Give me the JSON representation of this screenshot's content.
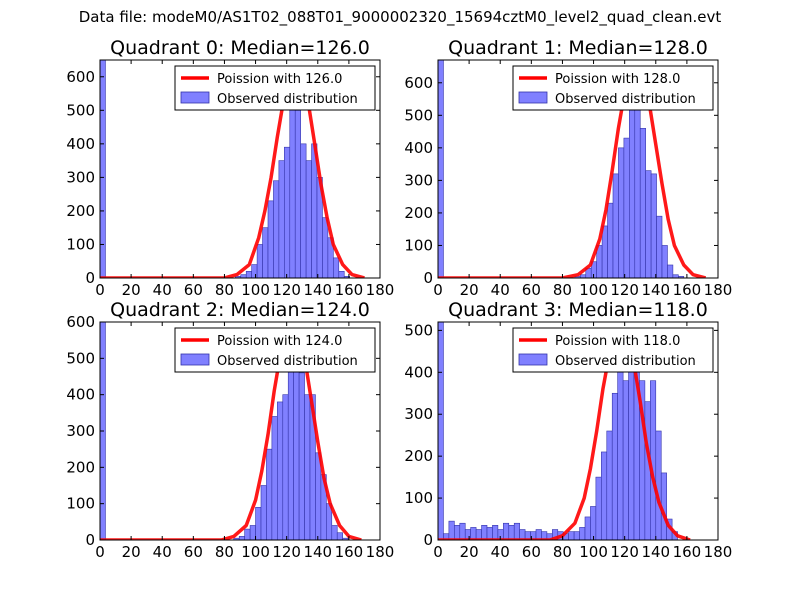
{
  "suptitle": "Data file: modeM0/AS1T02_088T01_9000002320_15694cztM0_level2_quad_clean.evt",
  "colors": {
    "hist_fill": "#8080ff",
    "hist_edge": "#3333aa",
    "poisson": "#ff0000"
  },
  "chart_data": [
    {
      "type": "bar",
      "title": "Quadrant 0: Median=126.0",
      "legend": [
        "Poission with 126.0",
        "Observed distribution"
      ],
      "legend_position": "top-right",
      "xlim": [
        0,
        180
      ],
      "ylim": [
        0,
        650
      ],
      "xticks": [
        0,
        20,
        40,
        60,
        80,
        100,
        120,
        140,
        160,
        180
      ],
      "yticks": [
        0,
        100,
        200,
        300,
        400,
        500,
        600
      ],
      "bin_width": 3.5,
      "hist": {
        "x": [
          0,
          87,
          90.5,
          94,
          97.5,
          101,
          104.5,
          108,
          111.5,
          115,
          118.5,
          122,
          125.5,
          129,
          132.5,
          136,
          139.5,
          143,
          146.5,
          150,
          153.5,
          157
        ],
        "values": [
          650,
          5,
          10,
          20,
          40,
          100,
          150,
          230,
          290,
          350,
          390,
          510,
          500,
          400,
          350,
          400,
          300,
          180,
          120,
          60,
          20,
          5
        ]
      },
      "poisson": {
        "x": [
          0,
          80,
          88,
          96,
          102,
          106,
          110,
          114,
          118,
          122,
          126,
          130,
          134,
          138,
          142,
          146,
          150,
          156,
          162,
          170
        ],
        "values": [
          0,
          0,
          10,
          40,
          120,
          200,
          300,
          420,
          530,
          600,
          625,
          600,
          520,
          400,
          280,
          180,
          100,
          40,
          10,
          0
        ]
      }
    },
    {
      "type": "bar",
      "title": "Quadrant 1: Median=128.0",
      "legend": [
        "Poission with 128.0",
        "Observed distribution"
      ],
      "legend_position": "top-right",
      "xlim": [
        0,
        180
      ],
      "ylim": [
        0,
        670
      ],
      "xticks": [
        0,
        20,
        40,
        60,
        80,
        100,
        120,
        140,
        160,
        180
      ],
      "yticks": [
        0,
        100,
        200,
        300,
        400,
        500,
        600
      ],
      "bin_width": 3.5,
      "hist": {
        "x": [
          0,
          88,
          91.5,
          95,
          98.5,
          102,
          105.5,
          109,
          112.5,
          116,
          119.5,
          123,
          126.5,
          130,
          133.5,
          137,
          140.5,
          144,
          147.5,
          151,
          154.5
        ],
        "values": [
          670,
          5,
          10,
          30,
          50,
          100,
          160,
          230,
          320,
          400,
          430,
          640,
          550,
          460,
          330,
          320,
          190,
          100,
          40,
          10,
          5
        ]
      },
      "poisson": {
        "x": [
          0,
          80,
          90,
          98,
          104,
          108,
          112,
          116,
          120,
          124,
          128,
          132,
          136,
          140,
          144,
          148,
          152,
          158,
          164,
          172
        ],
        "values": [
          0,
          0,
          10,
          40,
          120,
          210,
          330,
          460,
          570,
          630,
          640,
          610,
          530,
          410,
          290,
          180,
          100,
          40,
          10,
          0
        ]
      }
    },
    {
      "type": "bar",
      "title": "Quadrant 2: Median=124.0",
      "legend": [
        "Poission with 124.0",
        "Observed distribution"
      ],
      "legend_position": "top-right",
      "xlim": [
        0,
        180
      ],
      "ylim": [
        0,
        600
      ],
      "xticks": [
        0,
        20,
        40,
        60,
        80,
        100,
        120,
        140,
        160,
        180
      ],
      "yticks": [
        0,
        100,
        200,
        300,
        400,
        500,
        600
      ],
      "bin_width": 3.5,
      "hist": {
        "x": [
          0,
          86,
          89.5,
          93,
          96.5,
          100,
          103.5,
          107,
          110.5,
          114,
          117.5,
          121,
          124.5,
          128,
          131.5,
          135,
          138.5,
          142,
          145.5,
          149,
          152.5,
          156
        ],
        "values": [
          600,
          5,
          10,
          30,
          40,
          90,
          150,
          250,
          340,
          380,
          400,
          490,
          580,
          460,
          400,
          400,
          240,
          180,
          100,
          40,
          20,
          5
        ]
      },
      "poisson": {
        "x": [
          0,
          78,
          86,
          94,
          100,
          104,
          108,
          112,
          116,
          120,
          124,
          128,
          132,
          136,
          140,
          144,
          148,
          154,
          160,
          168
        ],
        "values": [
          0,
          0,
          10,
          40,
          110,
          190,
          290,
          410,
          510,
          560,
          580,
          560,
          490,
          380,
          270,
          170,
          100,
          40,
          10,
          0
        ]
      }
    },
    {
      "type": "bar",
      "title": "Quadrant 3: Median=118.0",
      "legend": [
        "Poission with 118.0",
        "Observed distribution"
      ],
      "legend_position": "top-right",
      "xlim": [
        0,
        180
      ],
      "ylim": [
        0,
        520
      ],
      "xticks": [
        0,
        20,
        40,
        60,
        80,
        100,
        120,
        140,
        160,
        180
      ],
      "yticks": [
        0,
        100,
        200,
        300,
        400,
        500
      ],
      "bin_width": 3.5,
      "hist": {
        "x": [
          0,
          3.5,
          7,
          10.5,
          14,
          17.5,
          21,
          24.5,
          28,
          31.5,
          35,
          38.5,
          42,
          45.5,
          49,
          52.5,
          56,
          59.5,
          63,
          66.5,
          70,
          73.5,
          77,
          80.5,
          84,
          87.5,
          91,
          94.5,
          98,
          101.5,
          105,
          108.5,
          112,
          115.5,
          119,
          122.5,
          126,
          129.5,
          133,
          136.5,
          140,
          143.5,
          147,
          150.5
        ],
        "values": [
          520,
          15,
          45,
          35,
          40,
          25,
          30,
          25,
          35,
          30,
          35,
          25,
          40,
          35,
          40,
          25,
          20,
          20,
          25,
          20,
          15,
          25,
          20,
          15,
          20,
          20,
          30,
          55,
          80,
          150,
          210,
          260,
          350,
          430,
          380,
          500,
          400,
          380,
          330,
          380,
          260,
          160,
          50,
          20
        ]
      },
      "poisson": {
        "x": [
          0,
          72,
          80,
          88,
          94,
          98,
          102,
          106,
          110,
          114,
          118,
          122,
          126,
          130,
          134,
          138,
          142,
          148,
          154,
          162
        ],
        "values": [
          0,
          0,
          10,
          40,
          100,
          170,
          260,
          360,
          440,
          490,
          500,
          480,
          420,
          330,
          230,
          150,
          90,
          35,
          10,
          0
        ]
      }
    }
  ]
}
